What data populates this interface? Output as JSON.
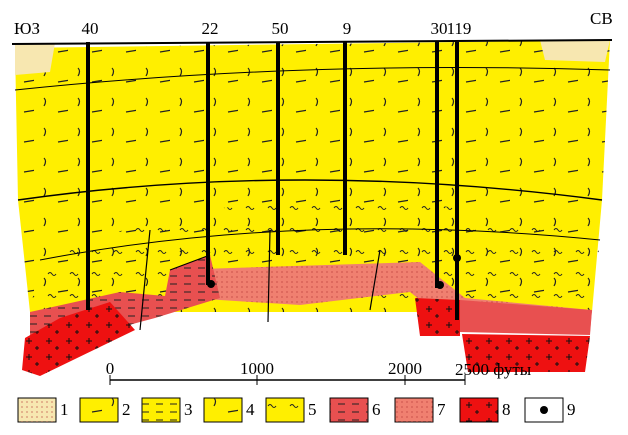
{
  "orientation": {
    "left": "ЮЗ",
    "right": "СВ"
  },
  "wells": [
    "40",
    "22",
    "50",
    "9",
    "30",
    "119"
  ],
  "scale": {
    "ticks": [
      "0",
      "1000",
      "2000"
    ],
    "end": "2500 футы"
  },
  "legend": [
    "1",
    "2",
    "3",
    "4",
    "5",
    "6",
    "7",
    "8",
    "9"
  ]
}
